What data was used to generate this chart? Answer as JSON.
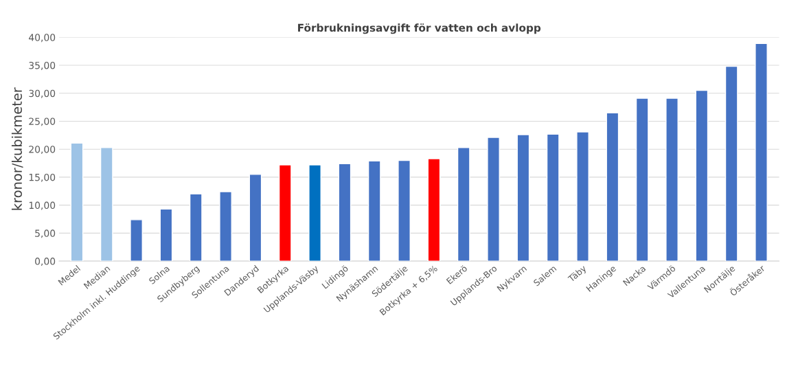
{
  "chart_data": {
    "type": "bar",
    "title": "Förbrukningsavgift för vatten och avlopp",
    "ylabel": "kronor/kubikmeter",
    "categories": [
      "Medel",
      "Median",
      "Stockholm inkl. Huddinge",
      "Solna",
      "Sundbyberg",
      "Sollentuna",
      "Danderyd",
      "Botkyrka",
      "Upplands-Väsby",
      "Lidingö",
      "Nynäshamn",
      "Södertälje",
      "Botkyrka + 6,5%",
      "Ekerö",
      "Upplands-Bro",
      "Nykvarn",
      "Salem",
      "Täby",
      "Haninge",
      "Nacka",
      "Värmdö",
      "Vallentuna",
      "Norrtälje",
      "Österåker"
    ],
    "values": [
      21.1,
      20.3,
      7.4,
      9.3,
      12.0,
      12.4,
      15.5,
      17.2,
      17.2,
      17.4,
      17.9,
      18.0,
      18.3,
      20.3,
      22.1,
      22.6,
      22.7,
      23.1,
      26.5,
      29.1,
      29.1,
      30.5,
      34.8,
      38.9
    ],
    "colors": [
      "#9dc3e6",
      "#9dc3e6",
      "#4472c4",
      "#4472c4",
      "#4472c4",
      "#4472c4",
      "#4472c4",
      "#ff0000",
      "#0070c0",
      "#4472c4",
      "#4472c4",
      "#4472c4",
      "#ff0000",
      "#4472c4",
      "#4472c4",
      "#4472c4",
      "#4472c4",
      "#4472c4",
      "#4472c4",
      "#4472c4",
      "#4472c4",
      "#4472c4",
      "#4472c4",
      "#4472c4"
    ],
    "ylim": [
      0,
      40
    ],
    "yticks": [
      {
        "value": 0,
        "label": "0,00"
      },
      {
        "value": 5,
        "label": "5,00"
      },
      {
        "value": 10,
        "label": "10,00"
      },
      {
        "value": 15,
        "label": "15,00"
      },
      {
        "value": 20,
        "label": "20,00"
      },
      {
        "value": 25,
        "label": "25,00"
      },
      {
        "value": 30,
        "label": "30,00"
      },
      {
        "value": 35,
        "label": "35,00"
      },
      {
        "value": 40,
        "label": "40,00"
      }
    ],
    "grid": "y",
    "legend": false
  }
}
